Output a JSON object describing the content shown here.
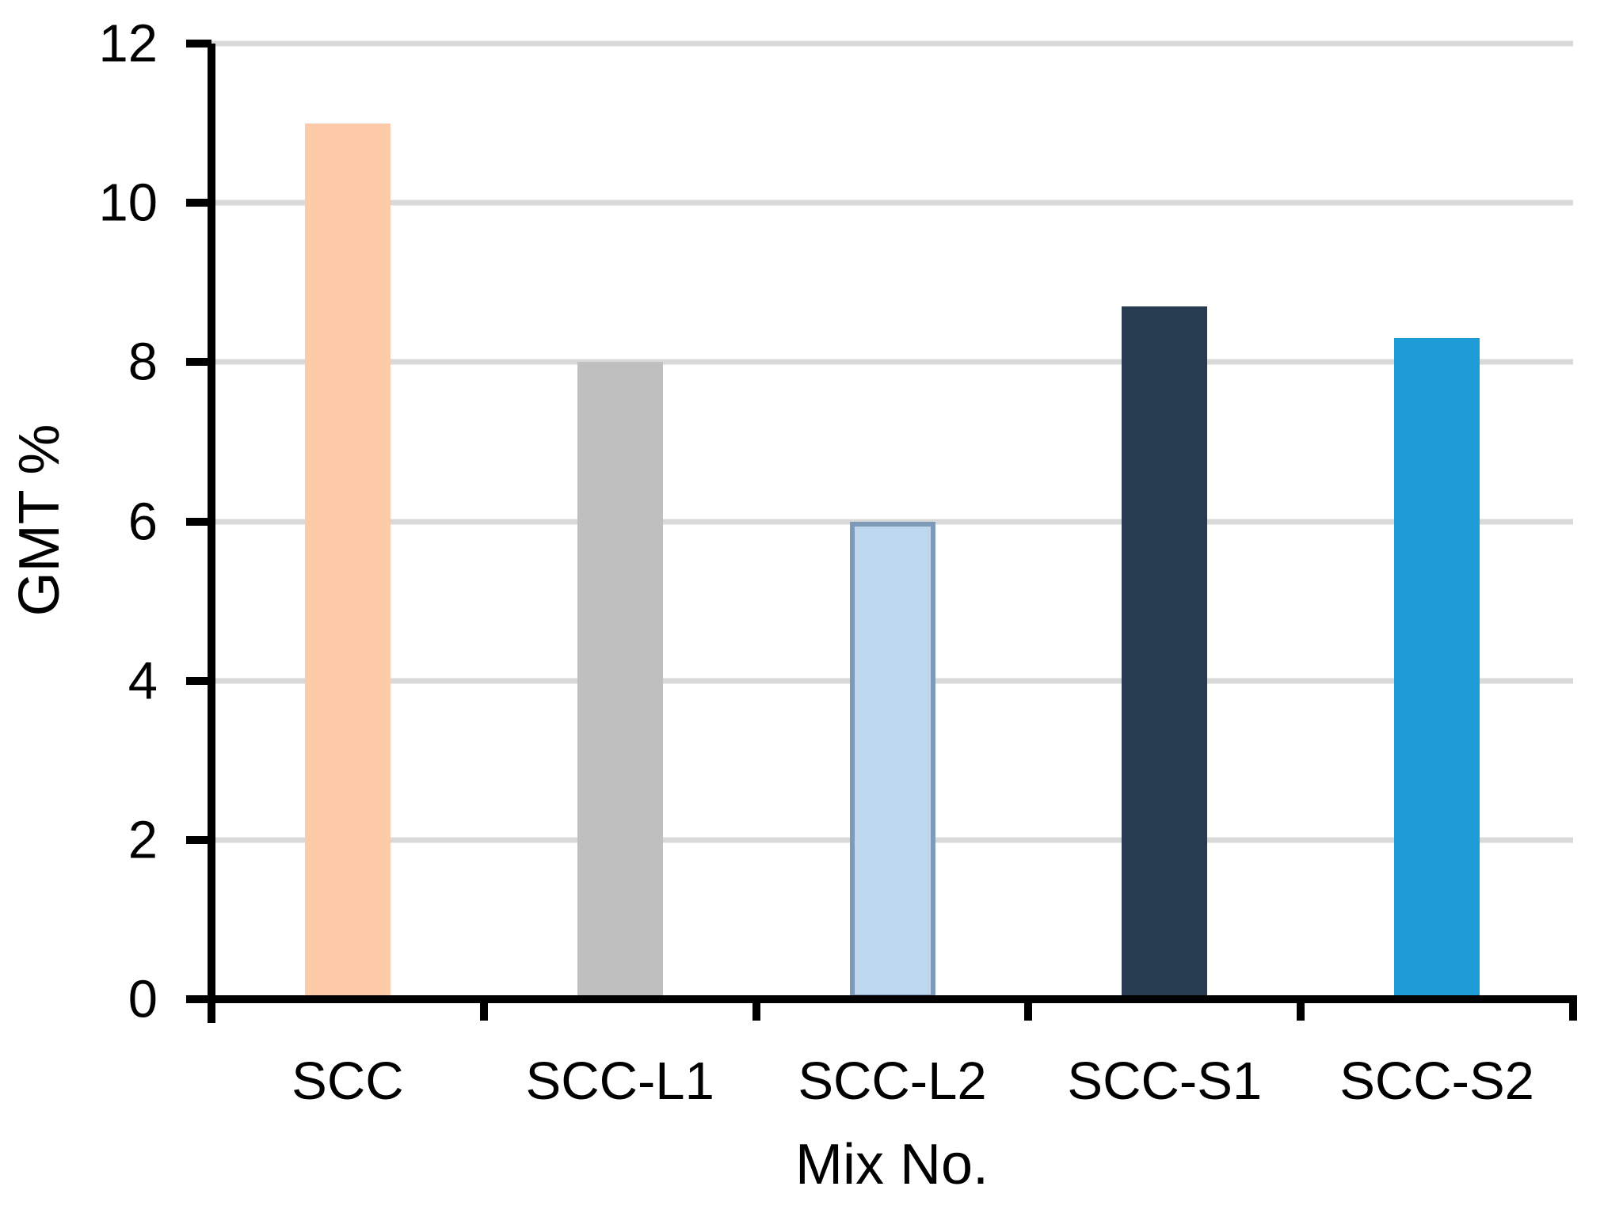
{
  "chart_data": {
    "type": "bar",
    "title": "",
    "xlabel": "Mix No.",
    "ylabel": "GMT %",
    "categories": [
      "SCC",
      "SCC-L1",
      "SCC-L2",
      "SCC-S1",
      "SCC-S2"
    ],
    "values": [
      11.0,
      8.0,
      6.0,
      8.7,
      8.3
    ],
    "bar_colors": [
      "#FDCBA9",
      "#BFBFBF",
      "#BDD7EE",
      "#273C50",
      "#1E9CD8"
    ],
    "bar_border_colors": [
      null,
      null,
      "#7E9AB8",
      null,
      null
    ],
    "bar_border_width_px": 6,
    "ylim": [
      0,
      12
    ],
    "yticks": [
      0,
      2,
      4,
      6,
      8,
      10,
      12
    ],
    "grid": true,
    "gridline_color": "#D9D9D9",
    "axis_color": "#000000",
    "text_color": "#000000",
    "background_color": "#FFFFFF",
    "legend": "none"
  }
}
